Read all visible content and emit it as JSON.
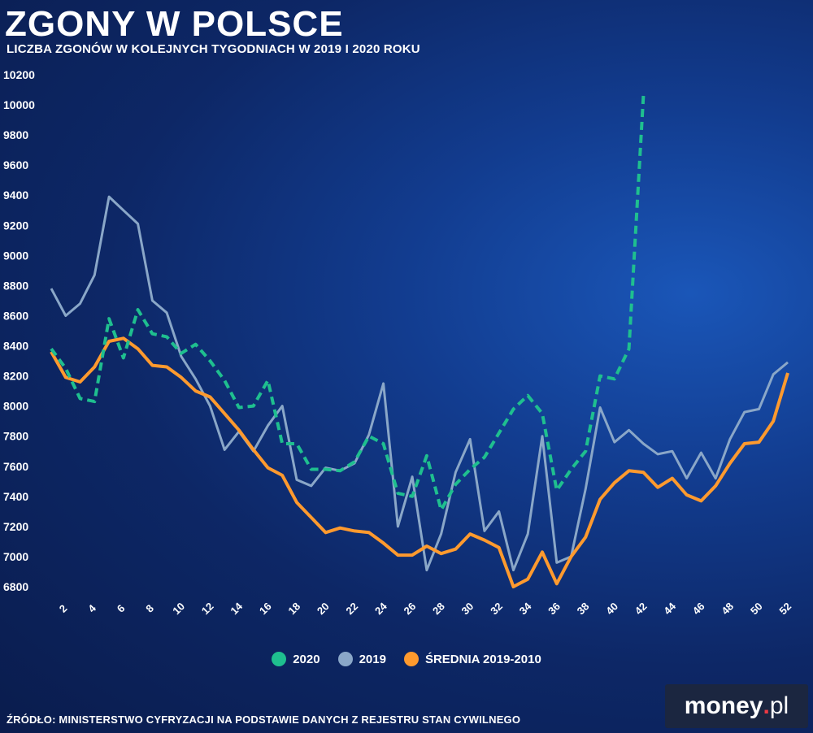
{
  "title": "ZGONY W POLSCE",
  "subtitle": "LICZBA ZGONÓW W KOLEJNYCH TYGODNIACH W 2019 I 2020 ROKU",
  "source": "ŹRÓDŁO: MINISTERSTWO CYFRYZACJI NA PODSTAWIE DANYCH Z REJESTRU STAN CYWILNEGO",
  "logo": {
    "brand": "money",
    "dot": ".",
    "suffix": "pl"
  },
  "colors": {
    "s2020": "#1fbf8f",
    "s2019": "#8aa7c8",
    "avg": "#ff9a2e"
  },
  "legend": [
    {
      "label": "2020",
      "color": "#1fbf8f"
    },
    {
      "label": "2019",
      "color": "#8aa7c8"
    },
    {
      "label": "ŚREDNIA 2019-2010",
      "color": "#ff9a2e"
    }
  ],
  "chart_data": {
    "type": "line",
    "title": "ZGONY W POLSCE",
    "xlabel": "",
    "ylabel": "",
    "ylim": [
      6800,
      10200
    ],
    "yticks": [
      6800,
      7000,
      7200,
      7400,
      7600,
      7800,
      8000,
      8200,
      8400,
      8600,
      8800,
      9000,
      9200,
      9400,
      9600,
      9800,
      10000,
      10200
    ],
    "xlim": [
      1,
      52
    ],
    "xticks": [
      2,
      4,
      6,
      8,
      10,
      12,
      14,
      16,
      18,
      20,
      22,
      24,
      26,
      28,
      30,
      32,
      34,
      36,
      38,
      40,
      42,
      44,
      46,
      48,
      50,
      52
    ],
    "series": [
      {
        "name": "2020",
        "style": "dashed",
        "weeks": [
          1,
          2,
          3,
          4,
          5,
          6,
          7,
          8,
          9,
          10,
          11,
          12,
          13,
          14,
          15,
          16,
          17,
          18,
          19,
          20,
          21,
          22,
          23,
          24,
          25,
          26,
          27,
          28,
          29,
          30,
          31,
          32,
          33,
          34,
          35,
          36,
          37,
          38,
          39,
          40,
          41,
          42
        ],
        "values": [
          8380,
          8250,
          8050,
          8030,
          8580,
          8320,
          8640,
          8480,
          8460,
          8350,
          8410,
          8300,
          8170,
          7990,
          8000,
          8170,
          7750,
          7750,
          7580,
          7580,
          7570,
          7630,
          7800,
          7750,
          7420,
          7400,
          7670,
          7310,
          7480,
          7580,
          7660,
          7820,
          7980,
          8070,
          7950,
          7440,
          7580,
          7700,
          8200,
          8180,
          8380,
          10060
        ]
      },
      {
        "name": "2019",
        "style": "solid",
        "weeks": [
          1,
          2,
          3,
          4,
          5,
          6,
          7,
          8,
          9,
          10,
          11,
          12,
          13,
          14,
          15,
          16,
          17,
          18,
          19,
          20,
          21,
          22,
          23,
          24,
          25,
          26,
          27,
          28,
          29,
          30,
          31,
          32,
          33,
          34,
          35,
          36,
          37,
          38,
          39,
          40,
          41,
          42,
          43,
          44,
          45,
          46,
          47,
          48,
          49,
          50,
          51,
          52
        ],
        "values": [
          8780,
          8600,
          8680,
          8870,
          9390,
          9300,
          9210,
          8700,
          8620,
          8330,
          8180,
          8000,
          7710,
          7830,
          7700,
          7870,
          8000,
          7510,
          7470,
          7590,
          7570,
          7620,
          7810,
          8150,
          7200,
          7530,
          6910,
          7150,
          7560,
          7780,
          7170,
          7300,
          6910,
          7150,
          7800,
          6960,
          7000,
          7450,
          7990,
          7760,
          7840,
          7750,
          7680,
          7700,
          7520,
          7690,
          7520,
          7780,
          7960,
          7980,
          8210,
          8290
        ]
      },
      {
        "name": "ŚREDNIA 2019-2010",
        "style": "solid",
        "weeks": [
          1,
          2,
          3,
          4,
          5,
          6,
          7,
          8,
          9,
          10,
          11,
          12,
          13,
          14,
          15,
          16,
          17,
          18,
          19,
          20,
          21,
          22,
          23,
          24,
          25,
          26,
          27,
          28,
          29,
          30,
          31,
          32,
          33,
          34,
          35,
          36,
          37,
          38,
          39,
          40,
          41,
          42,
          43,
          44,
          45,
          46,
          47,
          48,
          49,
          50,
          51,
          52
        ],
        "values": [
          8360,
          8190,
          8160,
          8260,
          8430,
          8450,
          8380,
          8270,
          8260,
          8190,
          8100,
          8060,
          7950,
          7840,
          7710,
          7590,
          7540,
          7360,
          7260,
          7160,
          7190,
          7170,
          7160,
          7090,
          7010,
          7010,
          7070,
          7020,
          7050,
          7150,
          7110,
          7060,
          6800,
          6850,
          7030,
          6820,
          7000,
          7130,
          7380,
          7490,
          7570,
          7560,
          7460,
          7520,
          7410,
          7370,
          7470,
          7620,
          7750,
          7760,
          7900,
          8220
        ]
      }
    ]
  }
}
